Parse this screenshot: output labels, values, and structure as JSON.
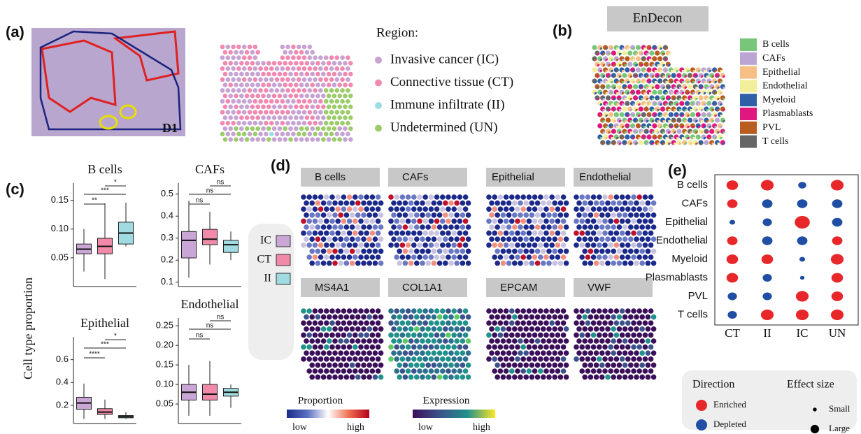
{
  "panels": {
    "a": {
      "label": "(a)",
      "image_text": "D1",
      "legend_title": "Region:",
      "regions": [
        {
          "name": "Invasive cancer (IC)",
          "color": "#c7a3d4"
        },
        {
          "name": "Connective tissue (CT)",
          "color": "#f08ab0"
        },
        {
          "name": "Immune infiltrate (II)",
          "color": "#9fdce4"
        },
        {
          "name": "Undetermined (UN)",
          "color": "#9ccc6a"
        }
      ]
    },
    "b": {
      "label": "(b)",
      "title": "EnDecon",
      "legend": [
        {
          "name": "B cells",
          "color": "#78c679"
        },
        {
          "name": "CAFs",
          "color": "#bba6d3"
        },
        {
          "name": "Epithelial",
          "color": "#f5bf85"
        },
        {
          "name": "Endothelial",
          "color": "#f2ef9a"
        },
        {
          "name": "Myeloid",
          "color": "#2f5fa6"
        },
        {
          "name": "Plasmablasts",
          "color": "#e0177f"
        },
        {
          "name": "PVL",
          "color": "#b85c1f"
        },
        {
          "name": "T cells",
          "color": "#666666"
        }
      ]
    },
    "c": {
      "label": "(c)",
      "y_label": "Cell type proportion",
      "groups": [
        {
          "name": "IC",
          "color": "#c9a6d6"
        },
        {
          "name": "CT",
          "color": "#f08aa8"
        },
        {
          "name": "II",
          "color": "#9fdbe1"
        }
      ],
      "plots": [
        {
          "title": "B cells",
          "ylim": [
            0.0,
            0.18
          ],
          "yticks": [
            0.05,
            {
              "value": 0.1,
              "label": "0.10"
            },
            0.15
          ],
          "boxes": [
            {
              "low": 0.026,
              "q1": 0.057,
              "median": 0.065,
              "q3": 0.074,
              "high": 0.1
            },
            {
              "low": 0.013,
              "q1": 0.057,
              "median": 0.07,
              "q3": 0.084,
              "high": 0.145
            },
            {
              "low": 0.07,
              "q1": 0.074,
              "median": 0.093,
              "q3": 0.112,
              "high": 0.146
            }
          ],
          "comparisons": [
            "**",
            "***",
            "*"
          ]
        },
        {
          "title": "CAFs",
          "ylim": [
            0.08,
            0.55
          ],
          "yticks": [
            0.1,
            0.2,
            0.3,
            0.4,
            0.5
          ],
          "boxes": [
            {
              "low": 0.12,
              "q1": 0.21,
              "median": 0.29,
              "q3": 0.33,
              "high": 0.47
            },
            {
              "low": 0.18,
              "q1": 0.27,
              "median": 0.295,
              "q3": 0.34,
              "high": 0.42
            },
            {
              "low": 0.2,
              "q1": 0.235,
              "median": 0.27,
              "q3": 0.29,
              "high": 0.33
            }
          ],
          "comparisons": [
            "ns",
            "ns",
            "ns"
          ]
        },
        {
          "title": "Epithelial",
          "ylim": [
            0.04,
            0.8
          ],
          "yticks": [
            0.2,
            0.4,
            0.6
          ],
          "boxes": [
            {
              "low": 0.08,
              "q1": 0.165,
              "median": 0.22,
              "q3": 0.27,
              "high": 0.39
            },
            {
              "low": 0.08,
              "q1": 0.12,
              "median": 0.14,
              "q3": 0.17,
              "high": 0.25
            },
            {
              "low": 0.08,
              "q1": 0.09,
              "median": 0.1,
              "q3": 0.11,
              "high": 0.14
            }
          ],
          "comparisons": [
            "****",
            "***",
            "*"
          ]
        },
        {
          "title": "Endothelial",
          "ylim": [
            0.0,
            0.27
          ],
          "yticks": [
            0.05,
            {
              "value": 0.1,
              "label": "0.10"
            },
            0.15,
            {
              "value": 0.2,
              "label": "0.20"
            },
            0.25
          ],
          "boxes": [
            {
              "low": 0.02,
              "q1": 0.06,
              "median": 0.08,
              "q3": 0.1,
              "high": 0.15
            },
            {
              "low": 0.02,
              "q1": 0.06,
              "median": 0.075,
              "q3": 0.1,
              "high": 0.16
            },
            {
              "low": 0.04,
              "q1": 0.07,
              "median": 0.08,
              "q3": 0.09,
              "high": 0.1
            }
          ],
          "comparisons": [
            "ns",
            "ns",
            "ns"
          ]
        }
      ]
    },
    "d": {
      "label": "(d)",
      "proportion_titles": [
        "B cells",
        "CAFs",
        "Epithelial",
        "Endothelial"
      ],
      "expression_titles": [
        "MS4A1",
        "COL1A1",
        "EPCAM",
        "VWF"
      ],
      "proportion_legend": {
        "title": "Proportion",
        "low": "low",
        "high": "high"
      },
      "expression_legend": {
        "title": "Expression",
        "low": "low",
        "high": "high"
      }
    },
    "e": {
      "label": "(e)",
      "rows": [
        "B cells",
        "CAFs",
        "Epithelial",
        "Endothelial",
        "Myeloid",
        "Plasmablasts",
        "PVL",
        "T cells"
      ],
      "columns": [
        "CT",
        "II",
        "IC",
        "UN"
      ],
      "dots": [
        [
          {
            "direction": "Enriched",
            "size": 0.7
          },
          {
            "direction": "Enriched",
            "size": 0.8
          },
          {
            "direction": "Depleted",
            "size": 0.4
          },
          {
            "direction": "Enriched",
            "size": 0.8
          }
        ],
        [
          {
            "direction": "Enriched",
            "size": 0.6
          },
          {
            "direction": "Depleted",
            "size": 0.6
          },
          {
            "direction": "Depleted",
            "size": 0.6
          },
          {
            "direction": "Depleted",
            "size": 0.6
          }
        ],
        [
          {
            "direction": "Depleted",
            "size": 0.2
          },
          {
            "direction": "Depleted",
            "size": 0.5
          },
          {
            "direction": "Enriched",
            "size": 1.0
          },
          {
            "direction": "Depleted",
            "size": 0.6
          }
        ],
        [
          {
            "direction": "Enriched",
            "size": 0.6
          },
          {
            "direction": "Depleted",
            "size": 0.6
          },
          {
            "direction": "Depleted",
            "size": 0.6
          },
          {
            "direction": "Enriched",
            "size": 0.6
          }
        ],
        [
          {
            "direction": "Enriched",
            "size": 0.7
          },
          {
            "direction": "Enriched",
            "size": 0.7
          },
          {
            "direction": "Depleted",
            "size": 0.2
          },
          {
            "direction": "Enriched",
            "size": 0.8
          }
        ],
        [
          {
            "direction": "Enriched",
            "size": 0.7
          },
          {
            "direction": "Depleted",
            "size": 0.5
          },
          {
            "direction": "Depleted",
            "size": 0.1
          },
          {
            "direction": "Enriched",
            "size": 0.7
          }
        ],
        [
          {
            "direction": "Depleted",
            "size": 0.5
          },
          {
            "direction": "Depleted",
            "size": 0.5
          },
          {
            "direction": "Enriched",
            "size": 0.8
          },
          {
            "direction": "Enriched",
            "size": 0.7
          }
        ],
        [
          {
            "direction": "Depleted",
            "size": 0.5
          },
          {
            "direction": "Enriched",
            "size": 0.8
          },
          {
            "direction": "Enriched",
            "size": 0.8
          },
          {
            "direction": "Enriched",
            "size": 0.8
          }
        ]
      ],
      "direction_title": "Direction",
      "size_title": "Effect size",
      "directions": [
        {
          "name": "Enriched",
          "color": "#e8272a"
        },
        {
          "name": "Depleted",
          "color": "#1f4ea3"
        }
      ],
      "sizes": [
        {
          "name": "Small",
          "size": 0.2
        },
        {
          "name": "Large",
          "size": 0.8
        }
      ]
    }
  }
}
